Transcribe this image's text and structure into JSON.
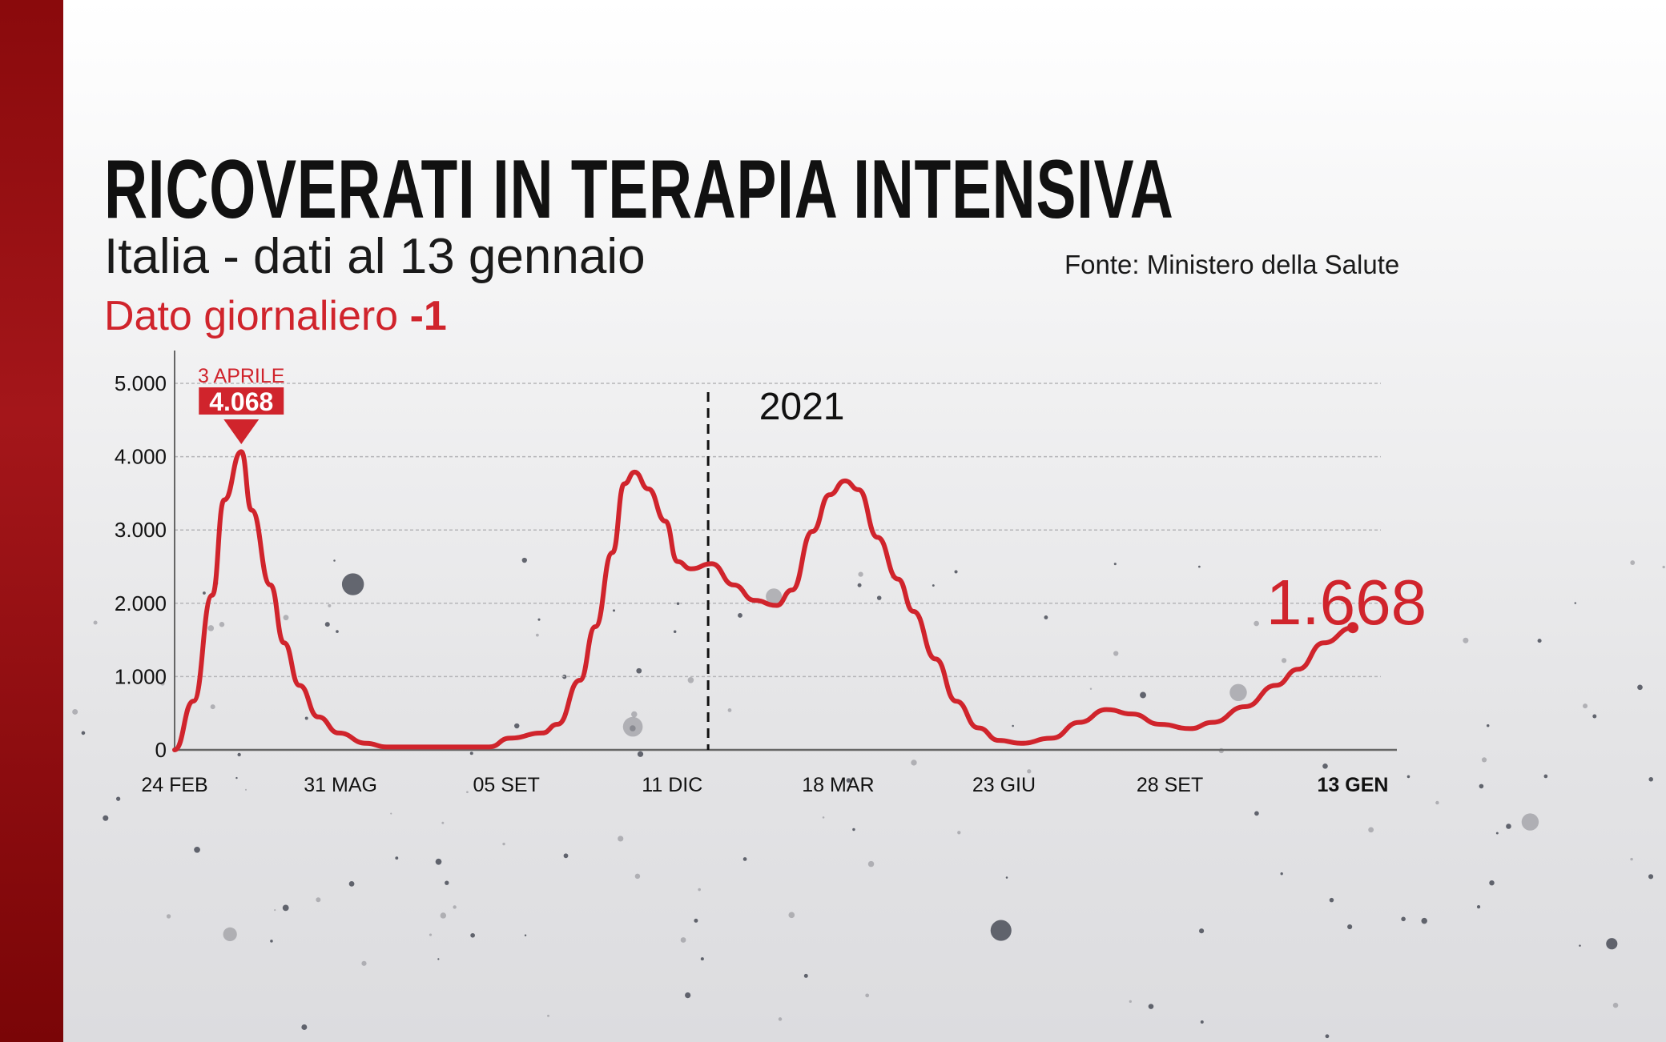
{
  "header": {
    "title": "RICOVERATI IN TERAPIA INTENSIVA",
    "subtitle": "Italia - dati al 13 gennaio",
    "daily_label": "Dato giornaliero",
    "daily_value": "-1",
    "source": "Fonte: Ministero della Salute"
  },
  "colors": {
    "accent": "#d0242c",
    "side_bar": "#a4161a",
    "axis": "#555555"
  },
  "chart_data": {
    "type": "line",
    "title": "RICOVERATI IN TERAPIA INTENSIVA",
    "xlabel": "",
    "ylabel": "",
    "ylim": [
      0,
      5000
    ],
    "xlim": [
      "2020-02-24",
      "2022-01-13"
    ],
    "grid": true,
    "y_ticks": [
      {
        "value": 0,
        "label": "0"
      },
      {
        "value": 1000,
        "label": "1.000"
      },
      {
        "value": 2000,
        "label": "2.000"
      },
      {
        "value": 3000,
        "label": "3.000"
      },
      {
        "value": 4000,
        "label": "4.000"
      },
      {
        "value": 5000,
        "label": "5.000"
      }
    ],
    "x_ticks": [
      {
        "date": "2020-02-24",
        "label": "24 FEB"
      },
      {
        "date": "2020-05-31",
        "label": "31 MAG"
      },
      {
        "date": "2020-09-05",
        "label": "05 SET"
      },
      {
        "date": "2020-12-11",
        "label": "11 DIC"
      },
      {
        "date": "2021-03-18",
        "label": "18 MAR"
      },
      {
        "date": "2021-06-23",
        "label": "23 GIU"
      },
      {
        "date": "2021-09-28",
        "label": "28 SET"
      },
      {
        "date": "2022-01-13",
        "label": "13 GEN"
      }
    ],
    "year_marker": {
      "date": "2021-01-01",
      "label": "2021"
    },
    "peak_annotation": {
      "date": "2020-04-03",
      "value": 4068,
      "date_label": "3 APRILE",
      "value_label": "4.068"
    },
    "last_annotation": {
      "date": "2022-01-13",
      "value": 1668,
      "label": "1.668"
    },
    "series": [
      {
        "points": [
          [
            "2020-02-24",
            0
          ],
          [
            "2020-03-06",
            665
          ],
          [
            "2020-03-17",
            2110
          ],
          [
            "2020-03-24",
            3410
          ],
          [
            "2020-04-03",
            4068
          ],
          [
            "2020-04-09",
            3270
          ],
          [
            "2020-04-20",
            2250
          ],
          [
            "2020-04-28",
            1460
          ],
          [
            "2020-05-07",
            880
          ],
          [
            "2020-05-18",
            450
          ],
          [
            "2020-05-30",
            230
          ],
          [
            "2020-06-15",
            90
          ],
          [
            "2020-06-27",
            40
          ],
          [
            "2020-08-26",
            40
          ],
          [
            "2020-09-07",
            160
          ],
          [
            "2020-09-26",
            230
          ],
          [
            "2020-10-05",
            350
          ],
          [
            "2020-10-18",
            950
          ],
          [
            "2020-10-27",
            1680
          ],
          [
            "2020-11-06",
            2690
          ],
          [
            "2020-11-13",
            3630
          ],
          [
            "2020-11-19",
            3790
          ],
          [
            "2020-11-27",
            3560
          ],
          [
            "2020-12-07",
            3120
          ],
          [
            "2020-12-14",
            2570
          ],
          [
            "2020-12-22",
            2470
          ],
          [
            "2021-01-03",
            2540
          ],
          [
            "2021-01-16",
            2250
          ],
          [
            "2021-01-28",
            2040
          ],
          [
            "2021-02-10",
            1970
          ],
          [
            "2021-02-19",
            2180
          ],
          [
            "2021-03-03",
            2980
          ],
          [
            "2021-03-13",
            3480
          ],
          [
            "2021-03-22",
            3670
          ],
          [
            "2021-03-30",
            3550
          ],
          [
            "2021-04-10",
            2900
          ],
          [
            "2021-04-22",
            2330
          ],
          [
            "2021-05-01",
            1890
          ],
          [
            "2021-05-14",
            1240
          ],
          [
            "2021-05-26",
            665
          ],
          [
            "2021-06-08",
            300
          ],
          [
            "2021-06-20",
            130
          ],
          [
            "2021-07-03",
            90
          ],
          [
            "2021-07-21",
            160
          ],
          [
            "2021-08-06",
            375
          ],
          [
            "2021-08-22",
            550
          ],
          [
            "2021-09-06",
            490
          ],
          [
            "2021-09-22",
            350
          ],
          [
            "2021-10-10",
            290
          ],
          [
            "2021-10-23",
            375
          ],
          [
            "2021-11-11",
            590
          ],
          [
            "2021-11-29",
            880
          ],
          [
            "2021-12-12",
            1100
          ],
          [
            "2021-12-27",
            1460
          ],
          [
            "2022-01-13",
            1668
          ]
        ]
      }
    ]
  }
}
